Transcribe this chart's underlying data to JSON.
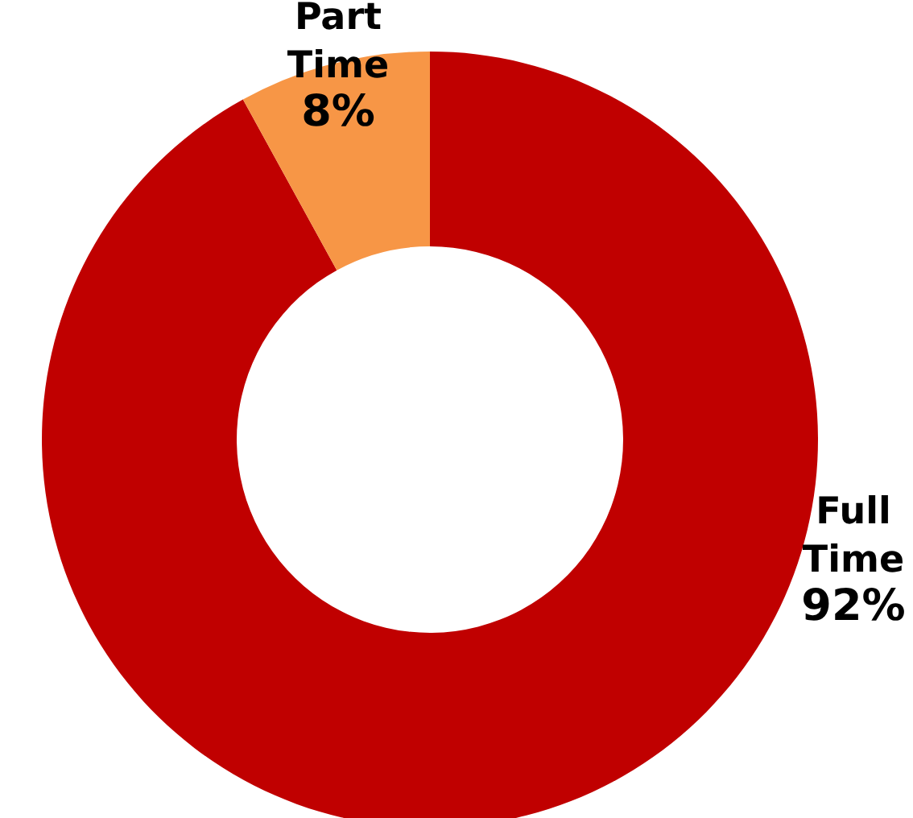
{
  "chart_data": {
    "type": "donut",
    "categories": [
      "Full Time",
      "Part Time"
    ],
    "values": [
      92,
      8
    ],
    "colors": [
      "#c00000",
      "#f79646"
    ],
    "value_labels": [
      "92%",
      "8%"
    ],
    "legend": false
  }
}
